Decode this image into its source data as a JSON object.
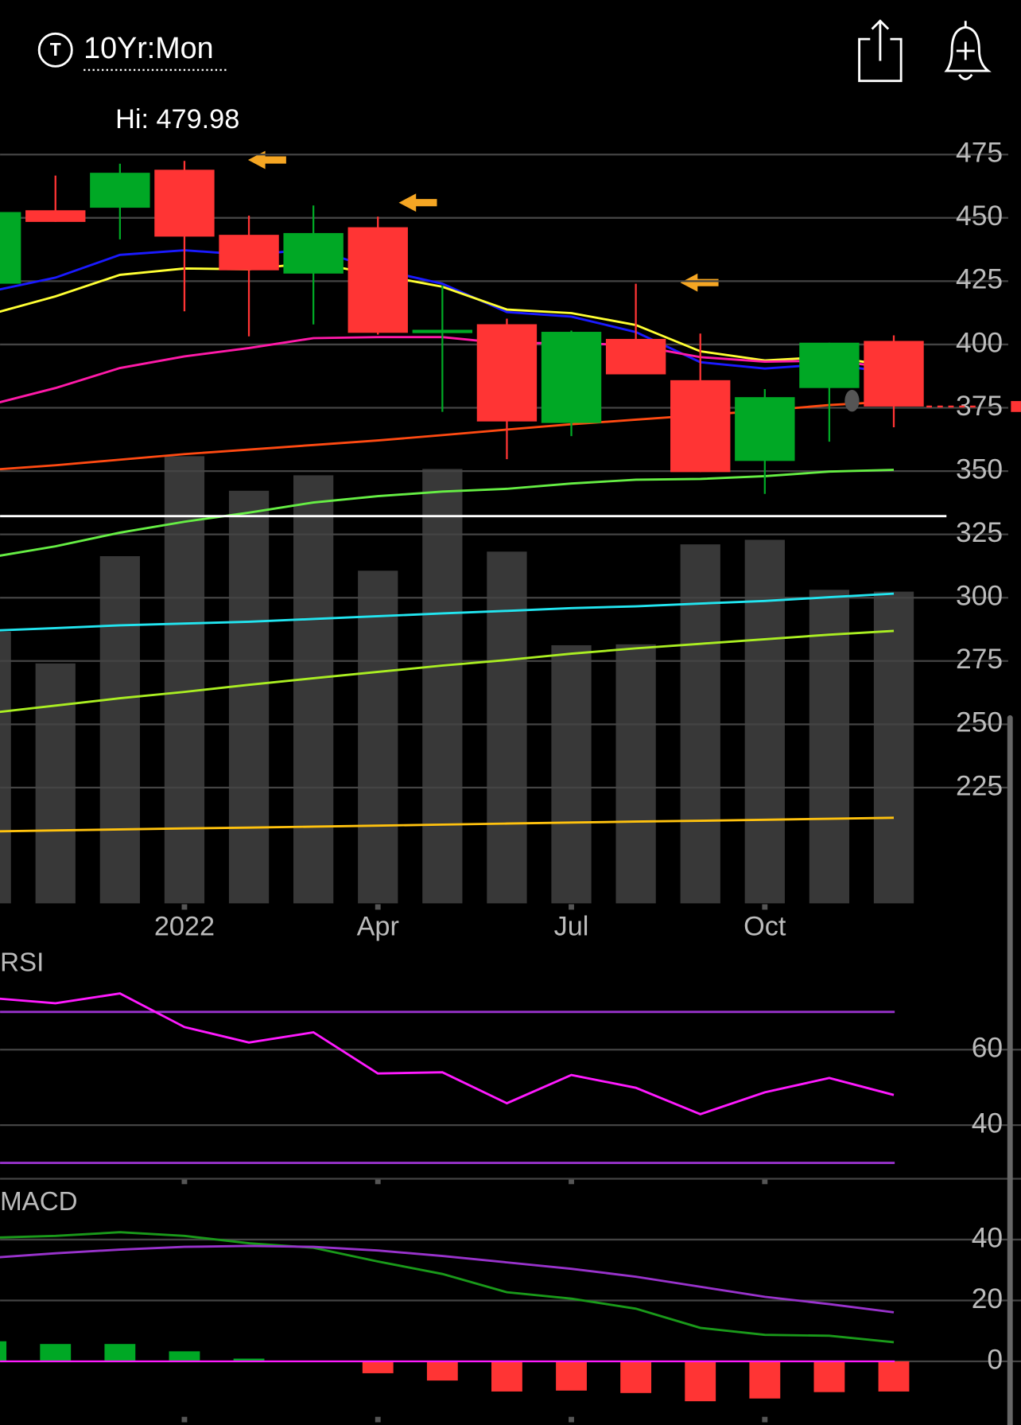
{
  "header": {
    "icon_letter": "T",
    "title": "10Yr:Mon",
    "hi_label": "Hi: 479.98"
  },
  "chart_data": [
    {
      "type": "candlestick",
      "categories": [
        null,
        null,
        null,
        "2022",
        null,
        null,
        "Apr",
        null,
        null,
        "Jul",
        null,
        null,
        "Oct",
        null,
        null
      ],
      "open": [
        424,
        453,
        454,
        469,
        443.3,
        428,
        446.3,
        404.5,
        408,
        369,
        402.2,
        385.9,
        354,
        382.8,
        401.4
      ],
      "high": [
        455,
        466.7,
        471.4,
        472.5,
        450.9,
        454.9,
        450.5,
        423.3,
        410.2,
        405.5,
        424,
        404.3,
        382.4,
        400.7,
        403.6
      ],
      "low": [
        420,
        448.4,
        441.5,
        413.1,
        403.2,
        407.9,
        403.9,
        373.4,
        354.7,
        363.8,
        388.2,
        349.6,
        341,
        361.6,
        367.3
      ],
      "close": [
        452.3,
        448.4,
        467.8,
        442.6,
        429.3,
        444,
        404.6,
        405.8,
        369.6,
        405,
        388.2,
        349.6,
        379.2,
        400.7,
        375.5
      ],
      "up_color": "#00a825",
      "down_color": "#ff3434",
      "volume": {
        "values": [
          299,
          264,
          382,
          492,
          454,
          471,
          366,
          478,
          387,
          284,
          285,
          395,
          400,
          345,
          343
        ],
        "color": "#383838",
        "vlim": [
          0,
          500
        ]
      },
      "series": [
        {
          "color": "#1a1aff",
          "values": [
            421,
            426.4,
            435.4,
            437.2,
            435.4,
            437.6,
            429.7,
            424,
            412.8,
            411,
            404.9,
            393,
            390.5,
            392.3,
            388.7
          ]
        },
        {
          "color": "#ffff33",
          "values": [
            412,
            419,
            427.5,
            430,
            429.7,
            432.3,
            427.5,
            422.8,
            413.8,
            412.4,
            407.7,
            397.3,
            393.7,
            395.1,
            391.5
          ]
        },
        {
          "color": "#ff1aa8",
          "values": [
            376.3,
            382.8,
            390.7,
            395.3,
            398.6,
            402.5,
            402.9,
            402.9,
            400.4,
            400.7,
            399.6,
            395,
            393.2,
            393.6,
            390.8
          ]
        },
        {
          "color": "#ff4a12",
          "values": [
            350.5,
            352.3,
            354.5,
            356.7,
            358.5,
            360.3,
            362.1,
            364.2,
            366.4,
            368.5,
            370.3,
            372.1,
            373.9,
            376.1,
            377.5
          ]
        },
        {
          "color": "#66ee44",
          "values": [
            316,
            320.3,
            325.7,
            330,
            333.6,
            337.6,
            340.1,
            341.9,
            343,
            345.1,
            346.6,
            346.9,
            348,
            349.8,
            350.5
          ]
        },
        {
          "color": "#22e5f0",
          "values": [
            287,
            288,
            289.1,
            289.8,
            290.5,
            291.6,
            292.7,
            293.8,
            294.8,
            295.9,
            296.6,
            297.7,
            298.7,
            300.2,
            301.6
          ]
        },
        {
          "color": "#aaee22",
          "values": [
            254.5,
            257.4,
            260.3,
            262.8,
            265.6,
            268.2,
            270.7,
            273.2,
            275.4,
            277.9,
            280,
            281.8,
            283.6,
            285.4,
            286.9
          ]
        },
        {
          "color": "#ffc20e",
          "values": [
            207.7,
            208.1,
            208.5,
            208.9,
            209.2,
            209.6,
            210,
            210.4,
            210.8,
            211.2,
            211.6,
            211.9,
            212.3,
            212.7,
            213.1
          ]
        }
      ],
      "hline": {
        "value": 332.2,
        "color": "#ffffff"
      },
      "ylim": [
        179.3,
        482.2
      ],
      "yticks": [
        225,
        250,
        275,
        300,
        325,
        350,
        375,
        400,
        425,
        450,
        475
      ],
      "grid": true
    },
    {
      "type": "line",
      "title": "RSI",
      "series": [
        {
          "color": "#ff1aff",
          "values": [
            73.7,
            72.3,
            74.9,
            66,
            61.9,
            64.6,
            53.7,
            54,
            45.8,
            53.3,
            49.9,
            42.9,
            48.7,
            52.5,
            48
          ]
        }
      ],
      "levels": [
        70,
        30
      ],
      "level_color": "#9933cc",
      "ylim": [
        25.8,
        86.5
      ],
      "yticks": [
        40,
        60
      ],
      "grid": true
    },
    {
      "type": "macd",
      "title": "MACD",
      "series": [
        {
          "color": "#1a9a1a",
          "values": [
            40.6,
            41.2,
            42.4,
            41.2,
            38.8,
            37.3,
            32.8,
            28.7,
            22.7,
            20.6,
            17.3,
            11,
            8.7,
            8.4,
            6.3
          ]
        },
        {
          "color": "#9933cc",
          "values": [
            34,
            35.5,
            36.7,
            37.6,
            37.9,
            37.6,
            36.4,
            34.6,
            32.5,
            30.4,
            27.8,
            24.5,
            21.2,
            18.8,
            16.1
          ]
        }
      ],
      "histogram": {
        "values": [
          6.6,
          5.7,
          5.7,
          3.3,
          0.9,
          0,
          -3.9,
          -6.3,
          -9.9,
          -9.6,
          -10.4,
          -13.1,
          -12.2,
          -10.1,
          -9.9
        ],
        "up_color": "#00a825",
        "down_color": "#ff3434"
      },
      "zero_color": "#ff1aff",
      "ylim": [
        -20.9,
        56.1
      ],
      "yticks": [
        0,
        20,
        40
      ],
      "grid": true
    }
  ]
}
